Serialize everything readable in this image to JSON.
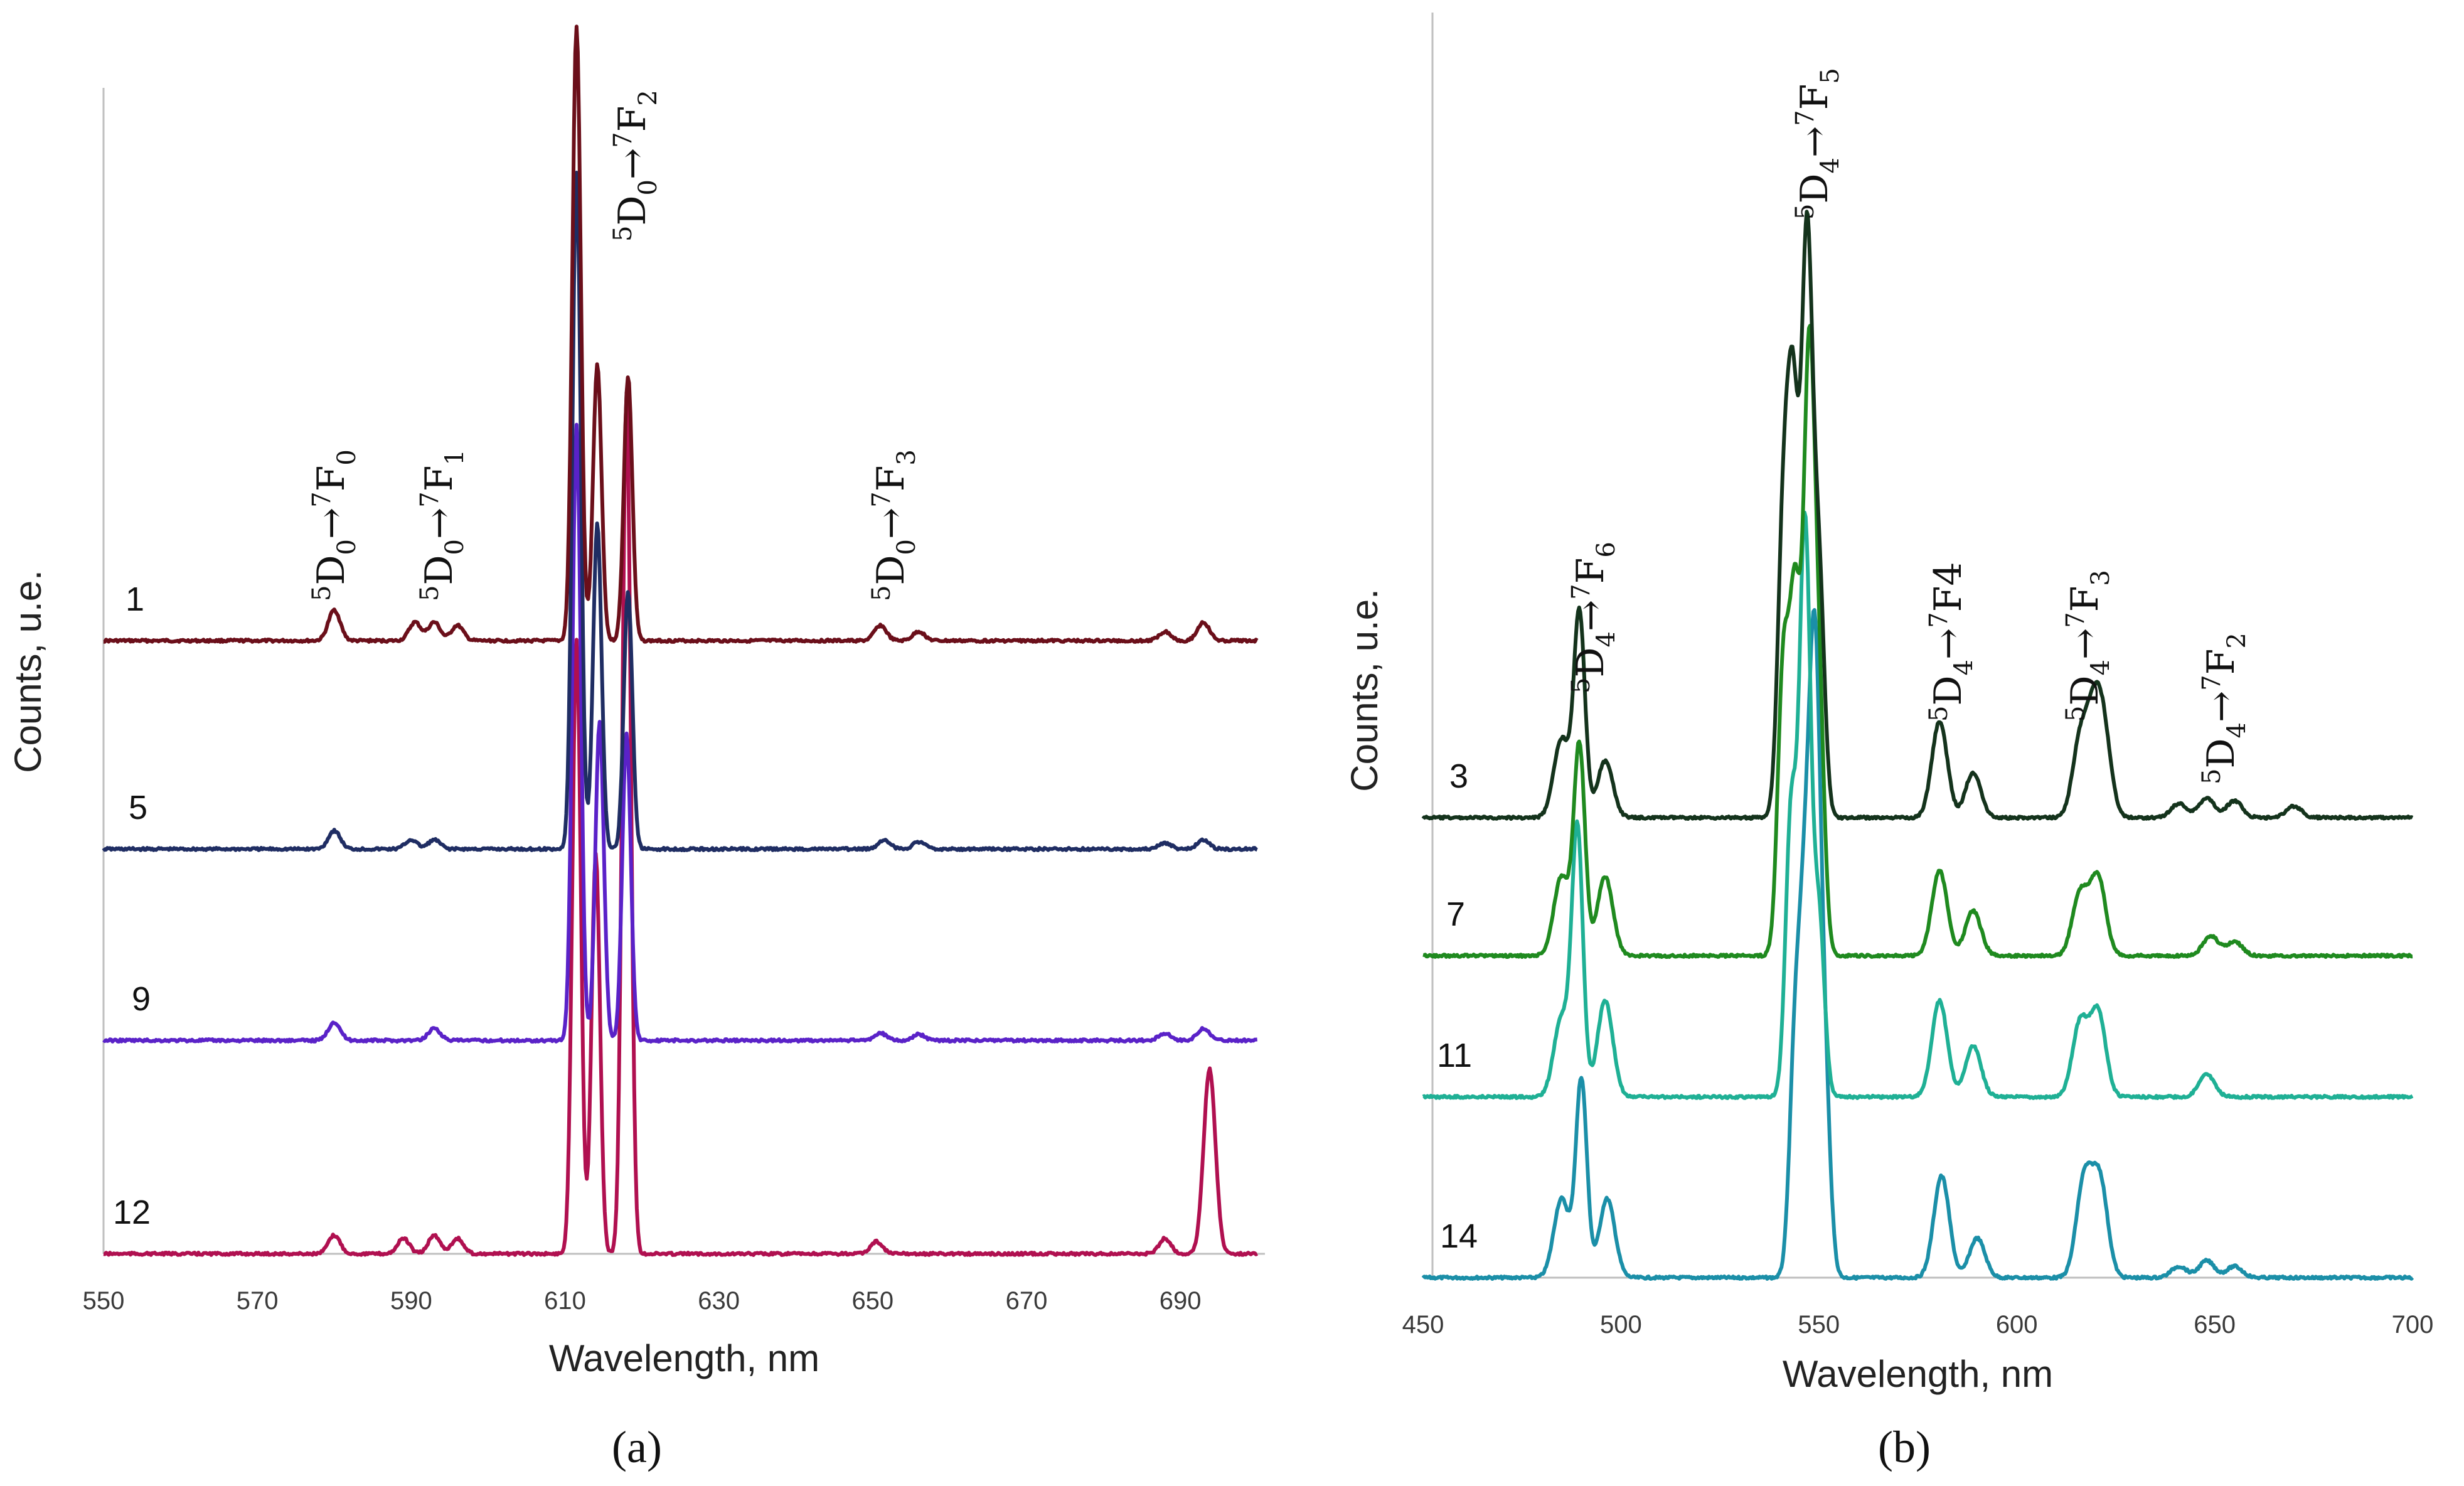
{
  "chart_data": [
    {
      "type": "line",
      "panel": "(a)",
      "xlabel": "Wavelength, nm",
      "ylabel": "Counts, u.e.",
      "xlim": [
        550,
        701
      ],
      "xticks": [
        "550",
        "570",
        "590",
        "610",
        "630",
        "650",
        "670",
        "690"
      ],
      "grid": false,
      "y_ticks_shown": false,
      "series_labels_inline": true,
      "series": [
        {
          "name": "1",
          "color": "#6b0f1a",
          "baseline_rank": 0,
          "peaks": [
            [
              580,
              0.05
            ],
            [
              590.5,
              0.03
            ],
            [
              593,
              0.03
            ],
            [
              596,
              0.025
            ],
            [
              611.5,
              1.0
            ],
            [
              614.2,
              0.45
            ],
            [
              618.2,
              0.43
            ],
            [
              651,
              0.025
            ],
            [
              656,
              0.015
            ],
            [
              688,
              0.015
            ],
            [
              693,
              0.03
            ]
          ]
        },
        {
          "name": "5",
          "color": "#1f2d63",
          "baseline_rank": 1,
          "peaks": [
            [
              580,
              0.03
            ],
            [
              590,
              0.015
            ],
            [
              593,
              0.015
            ],
            [
              611.5,
              1.1
            ],
            [
              614.2,
              0.53
            ],
            [
              618.2,
              0.42
            ],
            [
              651.5,
              0.015
            ],
            [
              656,
              0.012
            ],
            [
              688,
              0.01
            ],
            [
              693,
              0.015
            ]
          ]
        },
        {
          "name": "9",
          "color": "#5a22c8",
          "baseline_rank": 2,
          "peaks": [
            [
              580,
              0.03
            ],
            [
              593,
              0.02
            ],
            [
              611.5,
              1.0
            ],
            [
              614.5,
              0.52
            ],
            [
              618,
              0.5
            ],
            [
              651,
              0.012
            ],
            [
              656,
              0.01
            ],
            [
              688,
              0.012
            ],
            [
              693,
              0.02
            ]
          ]
        },
        {
          "name": "12",
          "color": "#b01050",
          "baseline_rank": 3,
          "peaks": [
            [
              580,
              0.03
            ],
            [
              589,
              0.025
            ],
            [
              593,
              0.03
            ],
            [
              596,
              0.025
            ],
            [
              611.5,
              1.0
            ],
            [
              614,
              0.65
            ],
            [
              618,
              1.4
            ],
            [
              650.5,
              0.02
            ],
            [
              688,
              0.025
            ],
            [
              693.8,
              0.3
            ]
          ]
        }
      ],
      "annotations": [
        {
          "text": "5D0→7F0",
          "sup1": "5",
          "base1": "D",
          "sub1": "0",
          "sup2": "7",
          "base2": "F",
          "sub2": "0",
          "x": 579
        },
        {
          "text": "5D0→7F1",
          "sup1": "5",
          "base1": "D",
          "sub1": "0",
          "sup2": "7",
          "base2": "F",
          "sub2": "1",
          "x": 592
        },
        {
          "text": "5D0→7F2",
          "sup1": "5",
          "base1": "D",
          "sub1": "0",
          "sup2": "7",
          "base2": "F",
          "sub2": "2",
          "x": 617
        },
        {
          "text": "5D0→7F3",
          "sup1": "5",
          "base1": "D",
          "sub1": "0",
          "sup2": "7",
          "base2": "F",
          "sub2": "3",
          "x": 652
        }
      ]
    },
    {
      "type": "line",
      "panel": "(b)",
      "xlabel": "Wavelength, nm",
      "ylabel": "Counts, u.e.",
      "xlim": [
        450,
        700
      ],
      "xticks": [
        "450",
        "500",
        "550",
        "600",
        "650",
        "700"
      ],
      "grid": false,
      "y_ticks_shown": false,
      "series_labels_inline": true,
      "series": [
        {
          "name": "3",
          "color": "#14331c",
          "baseline_rank": 0,
          "peaks": [
            [
              485,
              0.14
            ],
            [
              489.5,
              0.36
            ],
            [
              496,
              0.1
            ],
            [
              541,
              0.5
            ],
            [
              543.5,
              0.68
            ],
            [
              547,
              1.0
            ],
            [
              550,
              0.42
            ],
            [
              580.5,
              0.17
            ],
            [
              589,
              0.08
            ],
            [
              616,
              0.13
            ],
            [
              619.5,
              0.15
            ],
            [
              622,
              0.13
            ],
            [
              641,
              0.025
            ],
            [
              648,
              0.035
            ],
            [
              655,
              0.03
            ],
            [
              670,
              0.02
            ]
          ]
        },
        {
          "name": "7",
          "color": "#1f8a1f",
          "baseline_rank": 1,
          "peaks": [
            [
              485,
              0.14
            ],
            [
              489.5,
              0.37
            ],
            [
              496,
              0.14
            ],
            [
              541,
              0.5
            ],
            [
              544,
              0.6
            ],
            [
              547.5,
              1.0
            ],
            [
              550,
              0.42
            ],
            [
              580.5,
              0.15
            ],
            [
              589,
              0.08
            ],
            [
              616,
              0.11
            ],
            [
              620.5,
              0.14
            ],
            [
              649,
              0.035
            ],
            [
              655,
              0.025
            ]
          ]
        },
        {
          "name": "11",
          "color": "#1fb095",
          "baseline_rank": 2,
          "peaks": [
            [
              485,
              0.14
            ],
            [
              489,
              0.47
            ],
            [
              496,
              0.17
            ],
            [
              543,
              0.5
            ],
            [
              546.5,
              1.0
            ],
            [
              550,
              0.32
            ],
            [
              580.5,
              0.17
            ],
            [
              589,
              0.09
            ],
            [
              616,
              0.13
            ],
            [
              620.5,
              0.15
            ],
            [
              648,
              0.04
            ]
          ]
        },
        {
          "name": "14",
          "color": "#1b8fa8",
          "baseline_rank": 3,
          "peaks": [
            [
              485,
              0.14
            ],
            [
              490,
              0.35
            ],
            [
              496.5,
              0.14
            ],
            [
              544,
              0.4
            ],
            [
              546.5,
              0.55
            ],
            [
              549,
              1.0
            ],
            [
              551.5,
              0.32
            ],
            [
              581,
              0.18
            ],
            [
              590,
              0.07
            ],
            [
              617,
              0.17
            ],
            [
              621,
              0.17
            ],
            [
              641,
              0.02
            ],
            [
              648,
              0.03
            ],
            [
              655,
              0.02
            ]
          ]
        }
      ],
      "annotations": [
        {
          "text": "5D4→7F6",
          "sup1": "5",
          "base1": "D",
          "sub1": "4",
          "sup2": "7",
          "base2": "F",
          "sub2": "6",
          "x": 490
        },
        {
          "text": "5D4→7F5",
          "sup1": "5",
          "base1": "D",
          "sub1": "4",
          "sup2": "7",
          "base2": "F",
          "sub2": "5",
          "x": 547
        },
        {
          "text": "5D4→7F4",
          "sup1": "5",
          "base1": "D",
          "sub1": "4",
          "sup2": "7",
          "base2": "F4",
          "sub2": "",
          "x": 581
        },
        {
          "text": "5D4→7F3",
          "sup1": "5",
          "base1": "D",
          "sub1": "4",
          "sup2": "7",
          "base2": "F",
          "sub2": "3",
          "x": 617
        },
        {
          "text": "5D4→7F2",
          "sup1": "5",
          "base1": "D",
          "sub1": "4",
          "sup2": "7",
          "base2": "F",
          "sub2": "2",
          "x": 648
        }
      ]
    }
  ]
}
